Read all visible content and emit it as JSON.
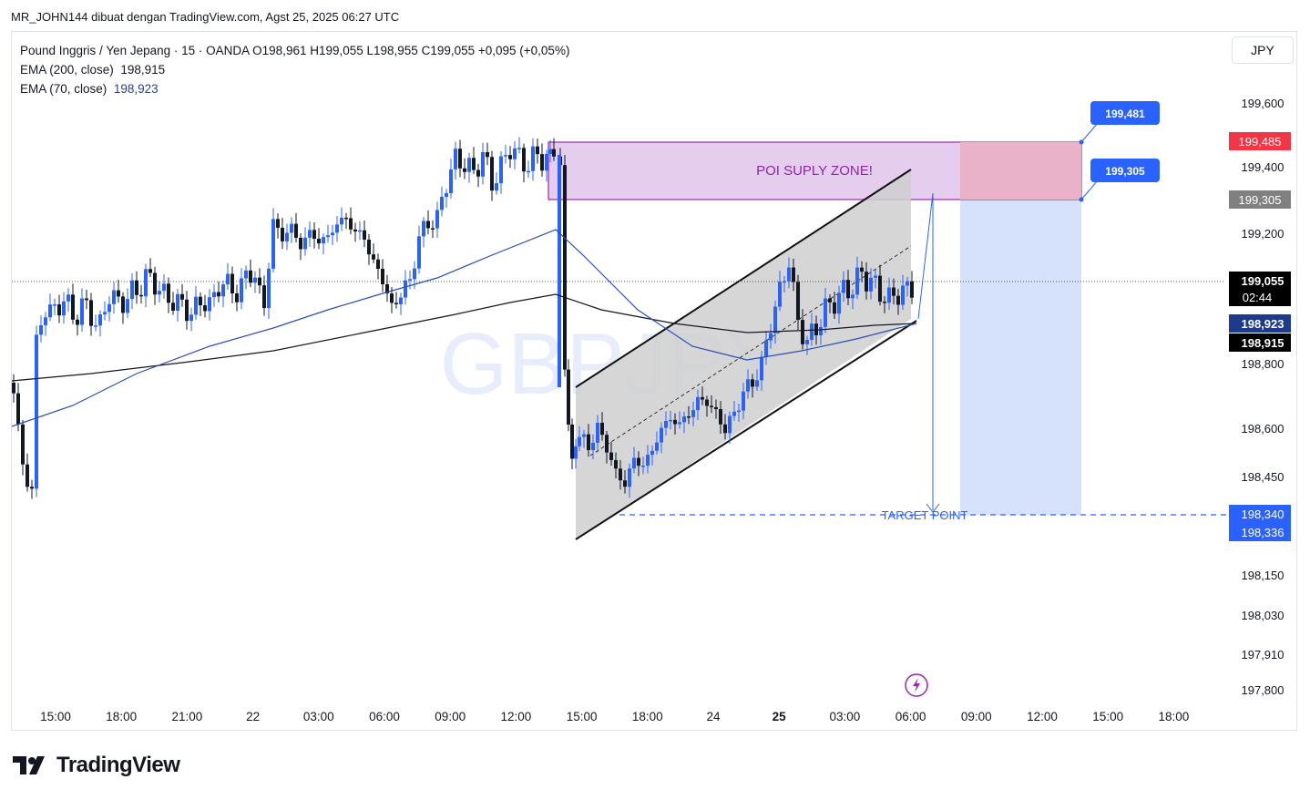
{
  "header": {
    "publisher_line": "MR_JOHN144 dibuat dengan TradingView.com, Agst 25, 2025 06:27 UTC"
  },
  "legend": {
    "symbol_line": "Pound Inggris / Yen Jepang · 15 · OANDA  O198,961  H199,055  L198,955  C199,055  +0,095 (+0,05%)",
    "ema200_label": "EMA (200, close)",
    "ema200_value": "198,915",
    "ema70_label": "EMA (70, close)",
    "ema70_value": "198,923"
  },
  "currency": "JPY",
  "watermark": "GBPJPY",
  "colors": {
    "bull": "#2962ff",
    "bear": "#131722",
    "ema70": "#2a4fb8",
    "ema200": "#131722",
    "supply_zone": "#e1c4ec",
    "supply_border": "#9c27b0",
    "target_zone": "#d6e2fb",
    "channel_fill": "#d3d3d3",
    "sell_red": "#f23645"
  },
  "chart_data": {
    "type": "candlestick",
    "symbol": "GBPJPY",
    "timeframe": "15",
    "x_ticks": [
      "15:00",
      "18:00",
      "21:00",
      "22",
      "03:00",
      "06:00",
      "09:00",
      "12:00",
      "15:00",
      "18:00",
      "24",
      "25",
      "03:00",
      "06:00",
      "09:00",
      "12:00",
      "15:00",
      "18:00"
    ],
    "y_ticks": [
      "199,600",
      "199,400",
      "199,200",
      "198,800",
      "198,600",
      "198,450",
      "198,150",
      "198,030",
      "197,910",
      "197,800"
    ],
    "price_tags": [
      {
        "label": "199,485",
        "kind": "zone-top"
      },
      {
        "label": "199,305",
        "kind": "zone-bottom"
      },
      {
        "label": "199,055",
        "kind": "last-price"
      },
      {
        "label": "02:44",
        "kind": "countdown"
      },
      {
        "label": "198,923",
        "kind": "ema70"
      },
      {
        "label": "198,915",
        "kind": "ema200"
      },
      {
        "label": "198,340",
        "kind": "target"
      },
      {
        "label": "198,336",
        "kind": "target"
      }
    ],
    "annotations": {
      "supply_zone_label": "POI SUPLY ZONE!",
      "target_label": "TARGET POINT",
      "callout_top": "199,481",
      "callout_bottom": "199,305"
    },
    "ohlc_last": {
      "open": 198.961,
      "high": 199.055,
      "low": 198.955,
      "close": 199.055
    },
    "ema200_last": 198.915,
    "ema70_last": 198.923
  }
}
